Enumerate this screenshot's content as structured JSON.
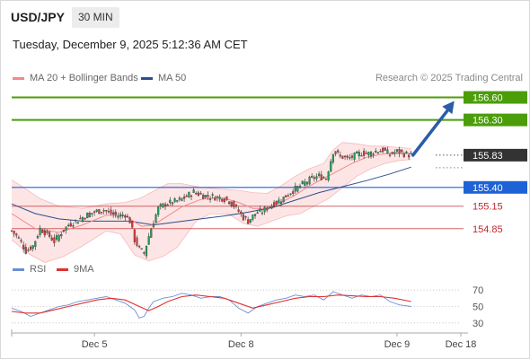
{
  "header": {
    "symbol": "USD/JPY",
    "timeframe": "30 MIN",
    "datetime": "Tuesday, December 9, 2025 5:12:36 AM CET"
  },
  "legend": {
    "ma20_label": "MA 20 + Bollinger Bands",
    "ma50_label": "MA 50",
    "copyright": "Research © 2025 Trading Central"
  },
  "colors": {
    "green_level": "#4c9d0a",
    "blue_level": "#1f62d6",
    "red_level": "#c0272d",
    "last_price": "#333333",
    "ma20": "#f08a8a",
    "ma50": "#2c4f8f",
    "band_fill": "#fcdcdc",
    "candle_up": "#1d9e5a",
    "candle_down": "#d33a3a",
    "rsi": "#6b8fd6",
    "rsi_ma": "#e03131",
    "arrow": "#2a5ca8"
  },
  "chart_data": [
    {
      "type": "candlestick",
      "x_ticks": [
        "Dec 5",
        "Dec 8",
        "Dec 9",
        "Dec 18"
      ],
      "ylim": [
        154.5,
        156.75
      ],
      "levels": [
        {
          "value": 156.6,
          "label": "156.60",
          "kind": "resistance",
          "color": "#4c9d0a"
        },
        {
          "value": 156.3,
          "label": "156.30",
          "kind": "resistance",
          "color": "#4c9d0a"
        },
        {
          "value": 155.83,
          "label": "155.83",
          "kind": "last",
          "color": "#333333"
        },
        {
          "value": 155.4,
          "label": "155.40",
          "kind": "pivot",
          "color": "#1f62d6"
        },
        {
          "value": 155.15,
          "label": "155.15",
          "kind": "support",
          "color": "#c0272d"
        },
        {
          "value": 154.85,
          "label": "154.85",
          "kind": "support",
          "color": "#c0272d"
        }
      ],
      "close_path": [
        [
          0,
          154.82
        ],
        [
          3,
          154.72
        ],
        [
          6,
          154.55
        ],
        [
          9,
          154.62
        ],
        [
          12,
          154.85
        ],
        [
          15,
          154.78
        ],
        [
          18,
          154.68
        ],
        [
          21,
          154.8
        ],
        [
          24,
          154.9
        ],
        [
          27,
          154.95
        ],
        [
          30,
          155.0
        ],
        [
          33,
          155.05
        ],
        [
          36,
          155.08
        ],
        [
          39,
          155.1
        ],
        [
          42,
          155.05
        ],
        [
          45,
          155.02
        ],
        [
          48,
          155.04
        ],
        [
          50,
          154.95
        ],
        [
          52,
          154.7
        ],
        [
          54,
          154.58
        ],
        [
          56,
          154.52
        ],
        [
          58,
          154.75
        ],
        [
          60,
          154.95
        ],
        [
          62,
          155.12
        ],
        [
          65,
          155.18
        ],
        [
          68,
          155.2
        ],
        [
          71,
          155.23
        ],
        [
          74,
          155.28
        ],
        [
          77,
          155.34
        ],
        [
          80,
          155.3
        ],
        [
          83,
          155.28
        ],
        [
          86,
          155.27
        ],
        [
          89,
          155.26
        ],
        [
          92,
          155.22
        ],
        [
          95,
          155.12
        ],
        [
          98,
          155.0
        ],
        [
          100,
          154.95
        ],
        [
          103,
          155.05
        ],
        [
          106,
          155.08
        ],
        [
          109,
          155.15
        ],
        [
          112,
          155.2
        ],
        [
          115,
          155.26
        ],
        [
          118,
          155.34
        ],
        [
          121,
          155.4
        ],
        [
          124,
          155.46
        ],
        [
          127,
          155.52
        ],
        [
          130,
          155.55
        ],
        [
          133,
          155.52
        ],
        [
          136,
          155.88
        ],
        [
          139,
          155.82
        ],
        [
          142,
          155.78
        ],
        [
          145,
          155.82
        ],
        [
          148,
          155.86
        ],
        [
          151,
          155.85
        ],
        [
          154,
          155.88
        ],
        [
          157,
          155.9
        ],
        [
          160,
          155.84
        ],
        [
          163,
          155.88
        ],
        [
          166,
          155.85
        ],
        [
          169,
          155.83
        ]
      ],
      "ma20": [
        [
          0,
          155.05
        ],
        [
          10,
          154.85
        ],
        [
          20,
          154.8
        ],
        [
          30,
          154.9
        ],
        [
          40,
          155.03
        ],
        [
          48,
          155.02
        ],
        [
          55,
          154.88
        ],
        [
          60,
          154.9
        ],
        [
          66,
          155.02
        ],
        [
          72,
          155.14
        ],
        [
          80,
          155.24
        ],
        [
          88,
          155.27
        ],
        [
          96,
          155.2
        ],
        [
          102,
          155.12
        ],
        [
          108,
          155.12
        ],
        [
          114,
          155.2
        ],
        [
          120,
          155.3
        ],
        [
          126,
          155.42
        ],
        [
          132,
          155.52
        ],
        [
          138,
          155.62
        ],
        [
          144,
          155.72
        ],
        [
          150,
          155.8
        ],
        [
          156,
          155.84
        ],
        [
          162,
          155.86
        ],
        [
          169,
          155.85
        ]
      ],
      "bb_upper": [
        [
          0,
          155.5
        ],
        [
          5,
          155.4
        ],
        [
          12,
          155.25
        ],
        [
          20,
          155.15
        ],
        [
          30,
          155.12
        ],
        [
          40,
          155.18
        ],
        [
          48,
          155.2
        ],
        [
          54,
          155.25
        ],
        [
          60,
          155.35
        ],
        [
          66,
          155.45
        ],
        [
          72,
          155.45
        ],
        [
          80,
          155.4
        ],
        [
          88,
          155.38
        ],
        [
          96,
          155.36
        ],
        [
          102,
          155.33
        ],
        [
          108,
          155.32
        ],
        [
          114,
          155.42
        ],
        [
          120,
          155.55
        ],
        [
          126,
          155.65
        ],
        [
          132,
          155.72
        ],
        [
          136,
          155.9
        ],
        [
          140,
          156.0
        ],
        [
          146,
          155.98
        ],
        [
          152,
          155.95
        ],
        [
          158,
          155.95
        ],
        [
          164,
          155.93
        ],
        [
          169,
          155.92
        ]
      ],
      "bb_lower": [
        [
          0,
          154.7
        ],
        [
          8,
          154.5
        ],
        [
          14,
          154.4
        ],
        [
          22,
          154.48
        ],
        [
          30,
          154.62
        ],
        [
          40,
          154.82
        ],
        [
          46,
          154.78
        ],
        [
          52,
          154.5
        ],
        [
          58,
          154.42
        ],
        [
          64,
          154.48
        ],
        [
          70,
          154.6
        ],
        [
          78,
          154.95
        ],
        [
          84,
          155.05
        ],
        [
          92,
          155.04
        ],
        [
          98,
          154.92
        ],
        [
          104,
          154.88
        ],
        [
          110,
          154.95
        ],
        [
          116,
          155.02
        ],
        [
          122,
          155.05
        ],
        [
          128,
          155.15
        ],
        [
          134,
          155.25
        ],
        [
          140,
          155.4
        ],
        [
          146,
          155.55
        ],
        [
          152,
          155.65
        ],
        [
          158,
          155.72
        ],
        [
          164,
          155.76
        ],
        [
          169,
          155.77
        ]
      ],
      "ma50": [
        [
          0,
          155.18
        ],
        [
          10,
          155.05
        ],
        [
          20,
          154.98
        ],
        [
          30,
          154.95
        ],
        [
          40,
          154.95
        ],
        [
          50,
          154.95
        ],
        [
          60,
          154.9
        ],
        [
          70,
          154.94
        ],
        [
          80,
          154.98
        ],
        [
          90,
          155.02
        ],
        [
          100,
          155.07
        ],
        [
          110,
          155.13
        ],
        [
          120,
          155.23
        ],
        [
          130,
          155.33
        ],
        [
          140,
          155.41
        ],
        [
          150,
          155.49
        ],
        [
          160,
          155.58
        ],
        [
          169,
          155.67
        ]
      ],
      "projection": {
        "from": [
          169,
          155.83
        ],
        "to": [
          188,
          156.6
        ]
      },
      "bar_count": 170,
      "x_tick_bars": [
        35,
        97,
        163,
        190
      ]
    },
    {
      "type": "line",
      "title": "RSI",
      "series": [
        {
          "name": "RSI",
          "color": "#6b8fd6",
          "values": [
            [
              0,
              48
            ],
            [
              4,
              44
            ],
            [
              8,
              38
            ],
            [
              12,
              42
            ],
            [
              16,
              46
            ],
            [
              20,
              50
            ],
            [
              24,
              52
            ],
            [
              28,
              56
            ],
            [
              32,
              58
            ],
            [
              36,
              60
            ],
            [
              40,
              62
            ],
            [
              44,
              58
            ],
            [
              48,
              54
            ],
            [
              52,
              46
            ],
            [
              54,
              36
            ],
            [
              56,
              38
            ],
            [
              58,
              48
            ],
            [
              60,
              56
            ],
            [
              64,
              60
            ],
            [
              68,
              62
            ],
            [
              72,
              66
            ],
            [
              76,
              64
            ],
            [
              80,
              60
            ],
            [
              84,
              62
            ],
            [
              88,
              62
            ],
            [
              92,
              58
            ],
            [
              96,
              48
            ],
            [
              100,
              42
            ],
            [
              104,
              50
            ],
            [
              108,
              54
            ],
            [
              112,
              58
            ],
            [
              116,
              60
            ],
            [
              120,
              64
            ],
            [
              124,
              62
            ],
            [
              128,
              64
            ],
            [
              132,
              58
            ],
            [
              136,
              68
            ],
            [
              140,
              64
            ],
            [
              144,
              60
            ],
            [
              148,
              64
            ],
            [
              152,
              62
            ],
            [
              156,
              64
            ],
            [
              160,
              56
            ],
            [
              164,
              52
            ],
            [
              169,
              50
            ]
          ]
        },
        {
          "name": "9MA",
          "color": "#e03131",
          "values": [
            [
              0,
              44
            ],
            [
              6,
              42
            ],
            [
              12,
              42
            ],
            [
              18,
              46
            ],
            [
              24,
              50
            ],
            [
              30,
              54
            ],
            [
              36,
              58
            ],
            [
              42,
              60
            ],
            [
              48,
              58
            ],
            [
              54,
              50
            ],
            [
              58,
              45
            ],
            [
              62,
              50
            ],
            [
              66,
              56
            ],
            [
              72,
              62
            ],
            [
              78,
              64
            ],
            [
              84,
              62
            ],
            [
              90,
              60
            ],
            [
              96,
              54
            ],
            [
              102,
              48
            ],
            [
              108,
              52
            ],
            [
              114,
              56
            ],
            [
              120,
              60
            ],
            [
              126,
              62
            ],
            [
              132,
              62
            ],
            [
              138,
              64
            ],
            [
              144,
              63
            ],
            [
              150,
              62
            ],
            [
              156,
              62
            ],
            [
              162,
              60
            ],
            [
              169,
              56
            ]
          ]
        }
      ],
      "ylim": [
        20,
        80
      ],
      "y_ticks": [
        70,
        50,
        30
      ],
      "guides": [
        70,
        50,
        30
      ]
    }
  ]
}
